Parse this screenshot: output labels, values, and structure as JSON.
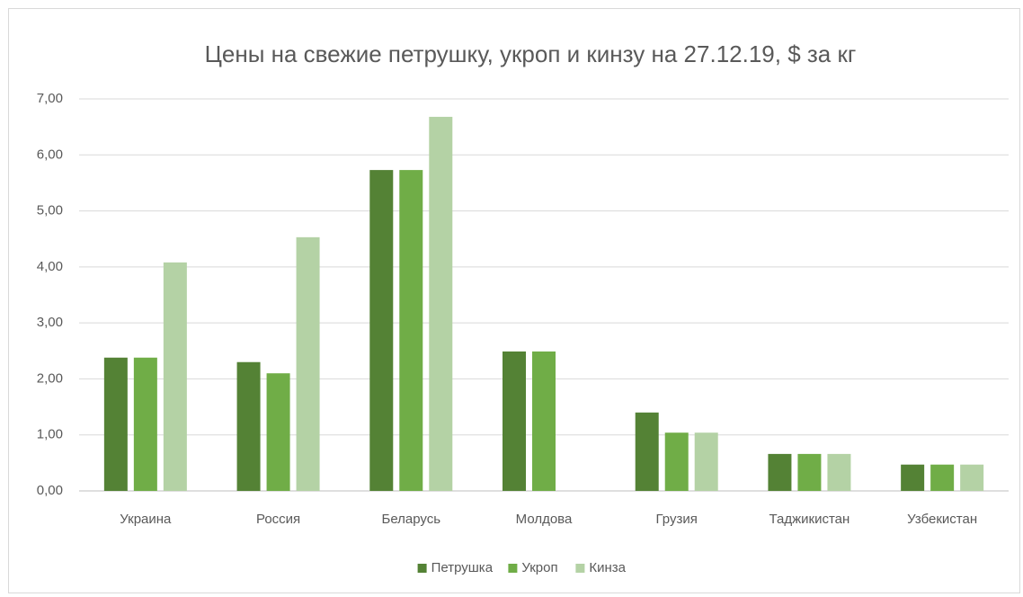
{
  "chart_data": {
    "type": "bar",
    "title": "Цены на свежие петрушку, укроп и кинзу на 27.12.19, $ за кг",
    "categories": [
      "Украина",
      "Россия",
      "Беларусь",
      "Молдова",
      "Грузия",
      "Таджикистан",
      "Узбекистан"
    ],
    "series": [
      {
        "name": "Петрушка",
        "color": "#548235",
        "values": [
          2.38,
          2.3,
          5.73,
          2.49,
          1.4,
          0.66,
          0.47
        ]
      },
      {
        "name": "Укроп",
        "color": "#70ad47",
        "values": [
          2.38,
          2.1,
          5.73,
          2.49,
          1.04,
          0.66,
          0.47
        ]
      },
      {
        "name": "Кинза",
        "color": "#b4d2a5",
        "values": [
          4.08,
          4.53,
          6.68,
          null,
          1.04,
          0.66,
          0.47
        ]
      }
    ],
    "ylim": [
      0,
      7
    ],
    "yticks": [
      {
        "value": 0,
        "label": "0,00"
      },
      {
        "value": 1,
        "label": "1,00"
      },
      {
        "value": 2,
        "label": "2,00"
      },
      {
        "value": 3,
        "label": "3,00"
      },
      {
        "value": 4,
        "label": "4,00"
      },
      {
        "value": 5,
        "label": "5,00"
      },
      {
        "value": 6,
        "label": "6,00"
      },
      {
        "value": 7,
        "label": "7,00"
      }
    ],
    "grid": true,
    "legend": "bottom"
  }
}
